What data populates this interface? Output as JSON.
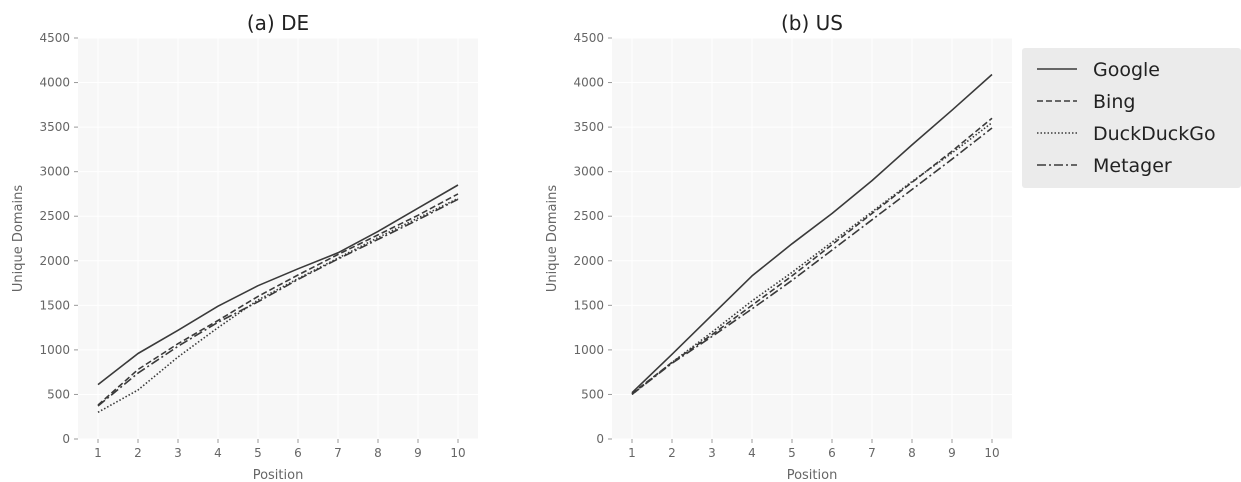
{
  "chart_data": [
    {
      "type": "line",
      "title": "(a) DE",
      "xlabel": "Position",
      "ylabel": "Unique Domains",
      "x": [
        1,
        2,
        3,
        4,
        5,
        6,
        7,
        8,
        9,
        10
      ],
      "xlim": [
        0.5,
        10.5
      ],
      "ylim": [
        0,
        4500
      ],
      "yticks": [
        0,
        500,
        1000,
        1500,
        2000,
        2500,
        3000,
        3500,
        4000,
        4500
      ],
      "grid": true,
      "series": [
        {
          "name": "Google",
          "values": [
            610,
            960,
            1220,
            1490,
            1720,
            1910,
            2090,
            2330,
            2590,
            2850
          ]
        },
        {
          "name": "Bing",
          "values": [
            380,
            780,
            1070,
            1330,
            1600,
            1840,
            2070,
            2290,
            2510,
            2750
          ]
        },
        {
          "name": "DuckDuckGo",
          "values": [
            300,
            550,
            920,
            1250,
            1560,
            1800,
            2030,
            2260,
            2480,
            2700
          ]
        },
        {
          "name": "Metager",
          "values": [
            370,
            740,
            1040,
            1310,
            1540,
            1790,
            2020,
            2240,
            2460,
            2690
          ]
        }
      ]
    },
    {
      "type": "line",
      "title": "(b) US",
      "xlabel": "Position",
      "ylabel": "Unique Domains",
      "x": [
        1,
        2,
        3,
        4,
        5,
        6,
        7,
        8,
        9,
        10
      ],
      "xlim": [
        0.5,
        10.5
      ],
      "ylim": [
        0,
        4500
      ],
      "yticks": [
        0,
        500,
        1000,
        1500,
        2000,
        2500,
        3000,
        3500,
        4000,
        4500
      ],
      "grid": true,
      "legend": "outside-right",
      "series": [
        {
          "name": "Google",
          "values": [
            520,
            950,
            1390,
            1830,
            2190,
            2530,
            2900,
            3300,
            3690,
            4090
          ]
        },
        {
          "name": "Bing",
          "values": [
            510,
            860,
            1170,
            1500,
            1830,
            2180,
            2530,
            2880,
            3230,
            3600
          ]
        },
        {
          "name": "DuckDuckGo",
          "values": [
            500,
            860,
            1200,
            1550,
            1870,
            2210,
            2550,
            2890,
            3210,
            3550
          ]
        },
        {
          "name": "Metager",
          "values": [
            500,
            850,
            1150,
            1460,
            1780,
            2120,
            2460,
            2800,
            3140,
            3490
          ]
        }
      ]
    }
  ],
  "style": {
    "line_color": "#3a3a3a",
    "dashes": {
      "Google": "",
      "Bing": "6,3",
      "DuckDuckGo": "1.5,2",
      "Metager": "9,3,2,3"
    },
    "plot_background": "#f7f7f7",
    "grid_color": "#ffffff",
    "legend_background": "#ebebeb"
  }
}
